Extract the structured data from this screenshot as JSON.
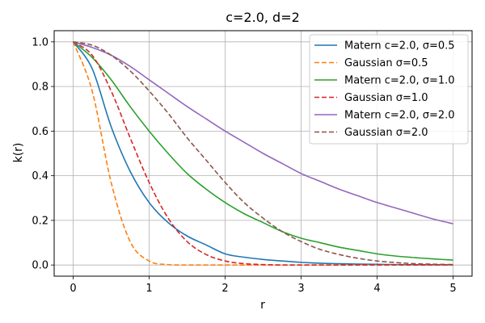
{
  "chart_data": {
    "type": "line",
    "title": "c=2.0, d=2",
    "xlabel": "r",
    "ylabel": "k(r)",
    "xlim": [
      -0.25,
      5.25
    ],
    "ylim": [
      -0.05,
      1.05
    ],
    "xticks": [
      0,
      1,
      2,
      3,
      4,
      5
    ],
    "xtick_labels": [
      "0",
      "1",
      "2",
      "3",
      "4",
      "5"
    ],
    "yticks": [
      0.0,
      0.2,
      0.4,
      0.6,
      0.8,
      1.0
    ],
    "ytick_labels": [
      "0.0",
      "0.2",
      "0.4",
      "0.6",
      "0.8",
      "1.0"
    ],
    "grid": true,
    "legend_position": "top-right",
    "x": [
      0,
      0.25,
      0.5,
      0.75,
      1.0,
      1.25,
      1.5,
      1.75,
      2.0,
      2.25,
      2.5,
      2.75,
      3.0,
      3.25,
      3.5,
      3.75,
      4.0,
      4.25,
      4.5,
      4.75,
      5.0
    ],
    "series": [
      {
        "name": "Matern c=2.0, σ=0.5",
        "color": "#1f77b4",
        "dash": "solid",
        "values": [
          1.0,
          0.88,
          0.62,
          0.42,
          0.28,
          0.19,
          0.13,
          0.09,
          0.05,
          0.035,
          0.025,
          0.018,
          0.012,
          0.008,
          0.006,
          0.004,
          0.003,
          0.002,
          0.0015,
          0.001,
          0.001
        ]
      },
      {
        "name": "Gaussian σ=0.5",
        "color": "#ff7f0e",
        "dash": "dashed",
        "values": [
          1.0,
          0.78,
          0.37,
          0.105,
          0.018,
          0.002,
          0.0,
          0.0,
          0.0,
          0.0,
          0.0,
          0.0,
          0.0,
          0.0,
          0.0,
          0.0,
          0.0,
          0.0,
          0.0,
          0.0,
          0.0
        ]
      },
      {
        "name": "Matern c=2.0, σ=1.0",
        "color": "#2ca02c",
        "dash": "solid",
        "values": [
          1.0,
          0.93,
          0.83,
          0.71,
          0.6,
          0.5,
          0.41,
          0.34,
          0.28,
          0.23,
          0.19,
          0.15,
          0.12,
          0.1,
          0.08,
          0.065,
          0.05,
          0.04,
          0.033,
          0.027,
          0.022
        ]
      },
      {
        "name": "Gaussian σ=1.0",
        "color": "#d62728",
        "dash": "dashed",
        "values": [
          1.0,
          0.94,
          0.78,
          0.57,
          0.37,
          0.21,
          0.105,
          0.047,
          0.018,
          0.006,
          0.002,
          0.0,
          0.0,
          0.0,
          0.0,
          0.0,
          0.0,
          0.0,
          0.0,
          0.0,
          0.0
        ]
      },
      {
        "name": "Matern c=2.0, σ=2.0",
        "color": "#9467bd",
        "dash": "solid",
        "values": [
          1.0,
          0.975,
          0.94,
          0.89,
          0.83,
          0.77,
          0.71,
          0.655,
          0.6,
          0.55,
          0.5,
          0.455,
          0.41,
          0.375,
          0.34,
          0.31,
          0.28,
          0.255,
          0.23,
          0.205,
          0.185
        ]
      },
      {
        "name": "Gaussian σ=2.0",
        "color": "#8c564b",
        "dash": "dashed",
        "values": [
          1.0,
          0.985,
          0.94,
          0.87,
          0.78,
          0.68,
          0.57,
          0.47,
          0.37,
          0.28,
          0.21,
          0.15,
          0.105,
          0.07,
          0.047,
          0.03,
          0.018,
          0.011,
          0.006,
          0.0035,
          0.002
        ]
      }
    ]
  }
}
